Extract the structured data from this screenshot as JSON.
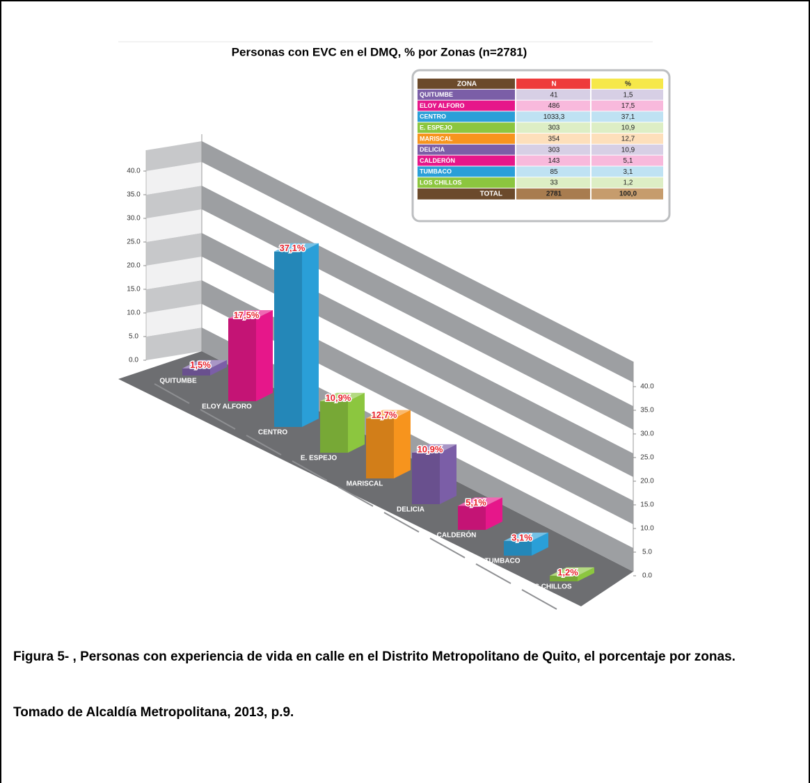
{
  "chart_data": {
    "type": "bar3d",
    "title": "Personas con EVC en el DMQ, % por Zonas (n=2781)",
    "categories": [
      "QUITUMBE",
      "ELOY ALFORO",
      "CENTRO",
      "E. ESPEJO",
      "MARISCAL",
      "DELICIA",
      "CALDERÓN",
      "TUMBACO",
      "LOS CHILLOS"
    ],
    "values": [
      1.5,
      17.5,
      37.1,
      10.9,
      12.7,
      10.9,
      5.1,
      3.1,
      1.2
    ],
    "value_labels": [
      "1,5%",
      "17,5%",
      "37,1%",
      "10,9%",
      "12,7%",
      "10,9%",
      "5,1%",
      "3,1%",
      "1,2%"
    ],
    "colors": [
      "#7b5ea7",
      "#e6178a",
      "#2a9fd8",
      "#8cc63f",
      "#f7941d",
      "#7b5ea7",
      "#e6178a",
      "#2a9fd8",
      "#8cc63f"
    ],
    "ylim": [
      0,
      40
    ],
    "yticks": [
      {
        "value": 0,
        "label": "0.0"
      },
      {
        "value": 5,
        "label": "5.0"
      },
      {
        "value": 10,
        "label": "10.0"
      },
      {
        "value": 15,
        "label": "15.0"
      },
      {
        "value": 20,
        "label": "20.0"
      },
      {
        "value": 25,
        "label": "25.0"
      },
      {
        "value": 30,
        "label": "30.0"
      },
      {
        "value": 35,
        "label": "35.0"
      },
      {
        "value": 40,
        "label": "40.0"
      }
    ],
    "table": {
      "header": [
        "ZONA",
        "N",
        "%"
      ],
      "n": [
        "41",
        "486",
        "1033,3",
        "303",
        "354",
        "303",
        "143",
        "85",
        "33"
      ],
      "pct": [
        "1,5",
        "17,5",
        "37,1",
        "10,9",
        "12,7",
        "10,9",
        "5,1",
        "3,1",
        "1,2"
      ],
      "total": [
        "TOTAL",
        "2781",
        "100,0"
      ]
    }
  },
  "caption": [
    "Figura 5- , Personas con experiencia de vida en calle en el Distrito Metropolitano de Quito, el porcentaje por zonas.",
    "Tomado de Alcaldía Metropolitana, 2013, p.9."
  ]
}
